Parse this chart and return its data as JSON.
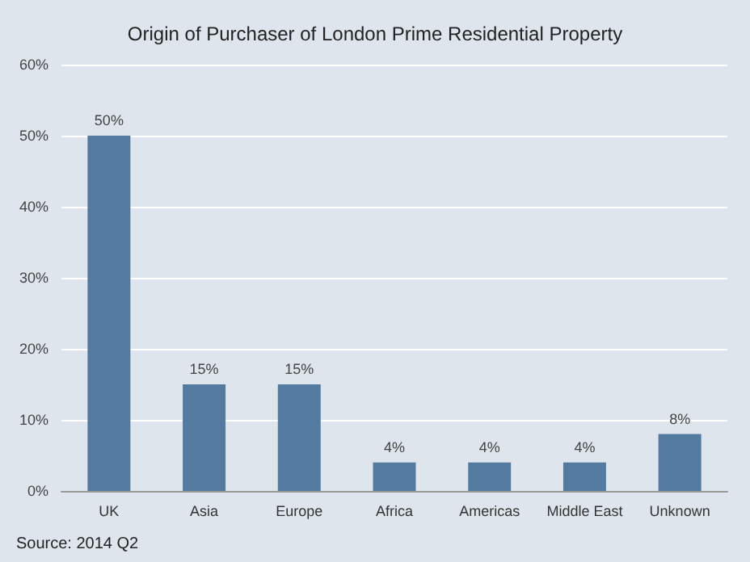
{
  "chart_data": {
    "type": "bar",
    "title": "Origin of Purchaser of London Prime Residential Property",
    "categories": [
      "UK",
      "Asia",
      "Europe",
      "Africa",
      "Americas",
      "Middle East",
      "Unknown"
    ],
    "values": [
      50,
      15,
      15,
      4,
      4,
      4,
      8
    ],
    "value_labels": [
      "50%",
      "15%",
      "15%",
      "4%",
      "4%",
      "4%",
      "8%"
    ],
    "color": "#527b9f",
    "ylim": [
      0,
      60
    ],
    "yticks": [
      {
        "value": 0,
        "label": "0%"
      },
      {
        "value": 10,
        "label": "10%"
      },
      {
        "value": 20,
        "label": "20%"
      },
      {
        "value": 30,
        "label": "30%"
      },
      {
        "value": 40,
        "label": "40%"
      },
      {
        "value": 50,
        "label": "50%"
      },
      {
        "value": 60,
        "label": "60%"
      }
    ],
    "grid": "y",
    "annotations": [
      "Source: 2014 Q2"
    ]
  }
}
